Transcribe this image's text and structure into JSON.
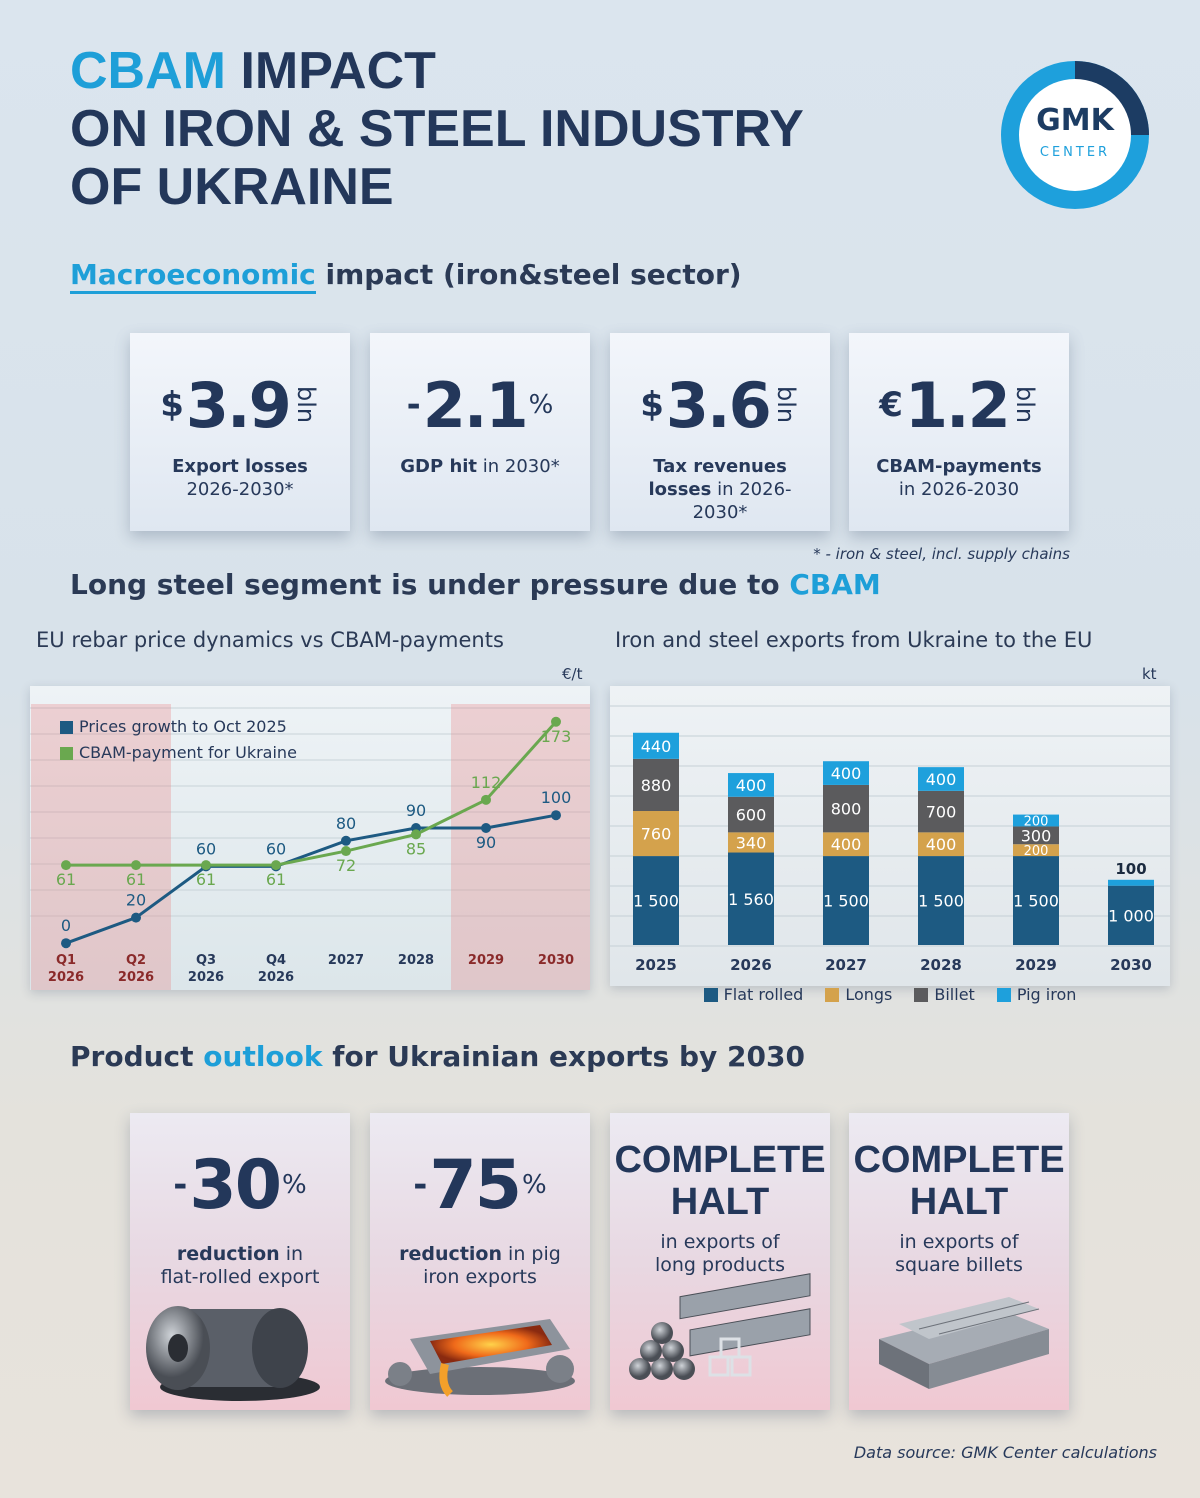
{
  "header": {
    "title_accent": "CBAM",
    "title_lines": [
      "IMPACT",
      "ON IRON & STEEL INDUSTRY",
      "OF UKRAINE"
    ]
  },
  "logo": {
    "name": "GMK",
    "subtitle": "CENTER"
  },
  "macro": {
    "heading_accent": "Macroeconomic",
    "heading_rest": "impact (iron&steel sector)",
    "cards": [
      {
        "prefix": "$",
        "value": "3.9",
        "unit": "bln",
        "label_bold": "Export losses",
        "label": "2026-2030*"
      },
      {
        "prefix": "-",
        "value": "2.1",
        "unit": "%",
        "label_bold": "GDP hit",
        "label": "in 2030*"
      },
      {
        "prefix": "$",
        "value": "3.6",
        "unit": "bln",
        "label_bold": "Tax revenues losses",
        "label": "in 2026-2030*"
      },
      {
        "prefix": "€",
        "value": "1.2",
        "unit": "bln",
        "label_bold": "CBAM-payments",
        "label": "in 2026-2030"
      }
    ],
    "footnote": "* - iron & steel, incl. supply chains"
  },
  "long_steel": {
    "heading": "Long steel segment is under pressure due to",
    "heading_accent": "CBAM"
  },
  "chart_data": [
    {
      "type": "line",
      "title": "EU rebar price dynamics vs CBAM-payments",
      "unit": "€/t",
      "categories": [
        "Q1 2026",
        "Q2 2026",
        "Q3 2026",
        "Q4 2026",
        "2027",
        "2028",
        "2029",
        "2030"
      ],
      "series": [
        {
          "name": "Prices growth to Oct 2025",
          "color": "#1d5a82",
          "values": [
            0,
            20,
            60,
            60,
            80,
            90,
            90,
            100
          ]
        },
        {
          "name": "CBAM-payment for Ukraine",
          "color": "#6aa84f",
          "values": [
            61,
            61,
            61,
            61,
            72,
            85,
            112,
            173
          ]
        }
      ],
      "ylim": [
        -10,
        190
      ],
      "shaded_ranges": [
        [
          0,
          1
        ],
        [
          6,
          7
        ]
      ],
      "legend": "upper left"
    },
    {
      "type": "stacked_bar",
      "title": "Iron and steel exports from Ukraine to the EU",
      "unit": "kt",
      "categories": [
        "2025",
        "2026",
        "2027",
        "2028",
        "2029",
        "2030"
      ],
      "series": [
        {
          "name": "Flat rolled",
          "color": "#1d5a82",
          "values": [
            1500,
            1560,
            1500,
            1500,
            1500,
            1000
          ],
          "value_labels": [
            "1 500",
            "1 560",
            "1 500",
            "1 500",
            "1 500",
            "1 000"
          ]
        },
        {
          "name": "Longs",
          "color": "#d4a24c",
          "values": [
            760,
            340,
            400,
            400,
            200,
            null
          ]
        },
        {
          "name": "Billet",
          "color": "#5b5b5d",
          "values": [
            880,
            600,
            800,
            700,
            300,
            null
          ]
        },
        {
          "name": "Pig iron",
          "color": "#1ea0dc",
          "values": [
            440,
            400,
            400,
            400,
            200,
            100
          ]
        }
      ],
      "ylim": [
        0,
        4200
      ],
      "legend": "bottom"
    }
  ],
  "outlook": {
    "heading_start": "Product",
    "heading_accent": "outlook",
    "heading_end": "for Ukrainian exports by 2030",
    "cards": [
      {
        "prefix": "-",
        "value": "30",
        "unit": "%",
        "label_bold": "reduction",
        "label": "in flat-rolled export"
      },
      {
        "prefix": "-",
        "value": "75",
        "unit": "%",
        "label_bold": "reduction",
        "label": "in pig iron exports"
      },
      {
        "headline": "COMPLETE HALT",
        "label": "in exports of long products"
      },
      {
        "headline": "COMPLETE HALT",
        "label": "in exports of square billets"
      }
    ]
  },
  "source": "Data source: GMK Center calculations"
}
